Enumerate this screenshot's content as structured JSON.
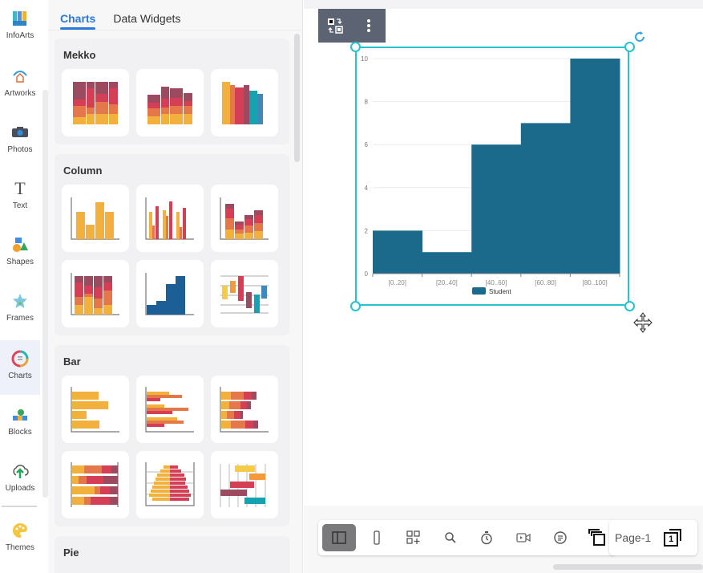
{
  "sidebar": {
    "items": [
      {
        "label": "InfoArts",
        "icon": "infoarts-icon"
      },
      {
        "label": "Artworks",
        "icon": "artworks-icon"
      },
      {
        "label": "Photos",
        "icon": "camera-icon"
      },
      {
        "label": "Text",
        "icon": "text-icon"
      },
      {
        "label": "Shapes",
        "icon": "shapes-icon"
      },
      {
        "label": "Frames",
        "icon": "star-frame-icon"
      },
      {
        "label": "Charts",
        "icon": "charts-icon",
        "active": true
      },
      {
        "label": "Blocks",
        "icon": "blocks-icon"
      },
      {
        "label": "Uploads",
        "icon": "cloud-upload-icon"
      },
      {
        "label": "Themes",
        "icon": "palette-icon"
      }
    ]
  },
  "panel": {
    "tabs": [
      {
        "label": "Charts",
        "active": true
      },
      {
        "label": "Data Widgets",
        "active": false
      }
    ],
    "sections": [
      {
        "title": "Mekko",
        "thumbs": [
          "mekko-chart",
          "mekko-stacked",
          "mekko-bar"
        ]
      },
      {
        "title": "Column",
        "thumbs": [
          "column-simple",
          "column-grouped",
          "column-stacked",
          "column-100-stacked",
          "column-histogram",
          "column-range"
        ]
      },
      {
        "title": "Bar",
        "thumbs": [
          "bar-simple",
          "bar-grouped",
          "bar-stacked",
          "bar-100-stacked",
          "bar-population-pyramid",
          "bar-gantt"
        ]
      },
      {
        "title": "Pie",
        "thumbs": []
      }
    ]
  },
  "canvas": {
    "float_toolbar": [
      "swap-icon",
      "more-vertical-icon"
    ]
  },
  "chart_data": {
    "type": "bar",
    "title": "",
    "categories": [
      "[0..20]",
      "[20..40]",
      "[40..60]",
      "[60..80]",
      "[80..100]"
    ],
    "values": [
      2,
      1,
      6,
      7,
      10
    ],
    "series": [
      {
        "name": "Student",
        "values": [
          2,
          1,
          6,
          7,
          10
        ],
        "color": "#1b6a8c"
      }
    ],
    "xlabel": "",
    "ylabel": "",
    "ylim": [
      0,
      10
    ],
    "yticks": [
      0,
      2,
      4,
      6,
      8,
      10
    ],
    "grid": true,
    "legend_position": "bottom",
    "histogram": true
  },
  "bottom_toolbar": {
    "tools": [
      "panel-toggle",
      "mobile-view",
      "add-widget",
      "zoom-search",
      "timer",
      "video",
      "comment",
      "layers"
    ],
    "page_label": "Page-1",
    "page_number": "1"
  },
  "colors": {
    "accent": "#2b7ad9",
    "selection": "#24c3cf",
    "bar": "#1b6a8c",
    "toolbar_dark": "#5c6373"
  }
}
